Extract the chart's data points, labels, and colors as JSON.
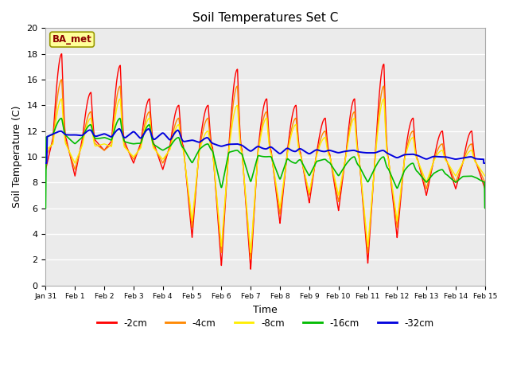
{
  "title": "Soil Temperatures Set C",
  "xlabel": "Time",
  "ylabel": "Soil Temperature (C)",
  "ylim": [
    0,
    20
  ],
  "annotation": "BA_met",
  "colors": {
    "-2cm": "#FF0000",
    "-4cm": "#FF8800",
    "-8cm": "#FFEE00",
    "-16cm": "#00BB00",
    "-32cm": "#0000DD"
  },
  "bg_color": "#EBEBEB",
  "tick_labels": [
    "Jan 31",
    "Feb 1",
    "Feb 2",
    "Feb 3",
    "Feb 4",
    "Feb 5",
    "Feb 6",
    "Feb 7",
    "Feb 8",
    "Feb 9",
    "Feb 10",
    "Feb 11",
    "Feb 12",
    "Feb 13",
    "Feb 14",
    "Feb 15"
  ],
  "days": 15
}
